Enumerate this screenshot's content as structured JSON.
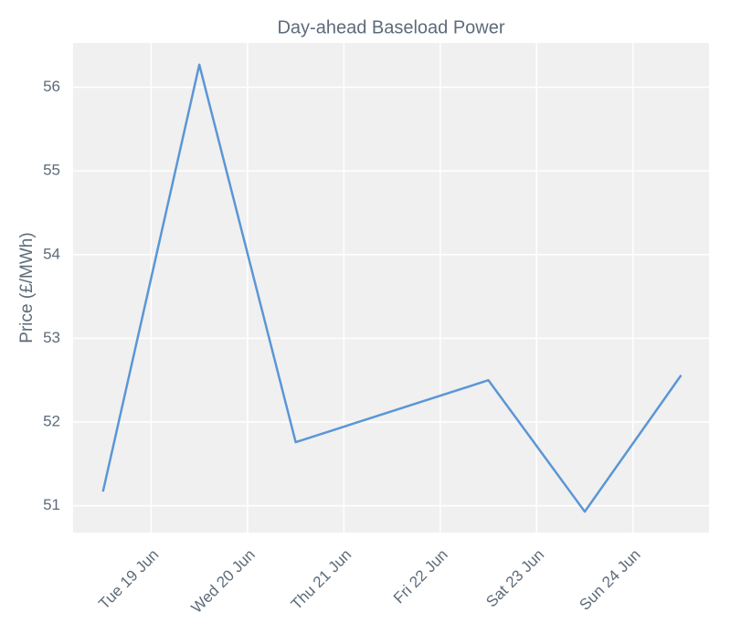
{
  "chart_data": {
    "type": "line",
    "title": "Day-ahead Baseload Power",
    "y_label": "Price (£/MWh)",
    "x": [
      18.5,
      19.5,
      20.5,
      22.5,
      23.5,
      24.5
    ],
    "series": [
      {
        "name": "Day-ahead Baseload Power",
        "color": "#5b96d6",
        "values": [
          51.17,
          56.27,
          51.76,
          52.5,
          50.93,
          52.56
        ]
      }
    ],
    "xlim": [
      18.19,
      24.79
    ],
    "xticks": [
      {
        "value": 19,
        "label": "Tue 19 Jun"
      },
      {
        "value": 20,
        "label": "Wed 20 Jun"
      },
      {
        "value": 21,
        "label": "Thu 21 Jun"
      },
      {
        "value": 22,
        "label": "Fri 22 Jun"
      },
      {
        "value": 23,
        "label": "Sat 23 Jun"
      },
      {
        "value": 24,
        "label": "Sun 24 Jun"
      }
    ],
    "ylim": [
      50.68,
      56.53
    ],
    "yticks": [
      51,
      52,
      53,
      54,
      55,
      56
    ],
    "grid": true
  }
}
